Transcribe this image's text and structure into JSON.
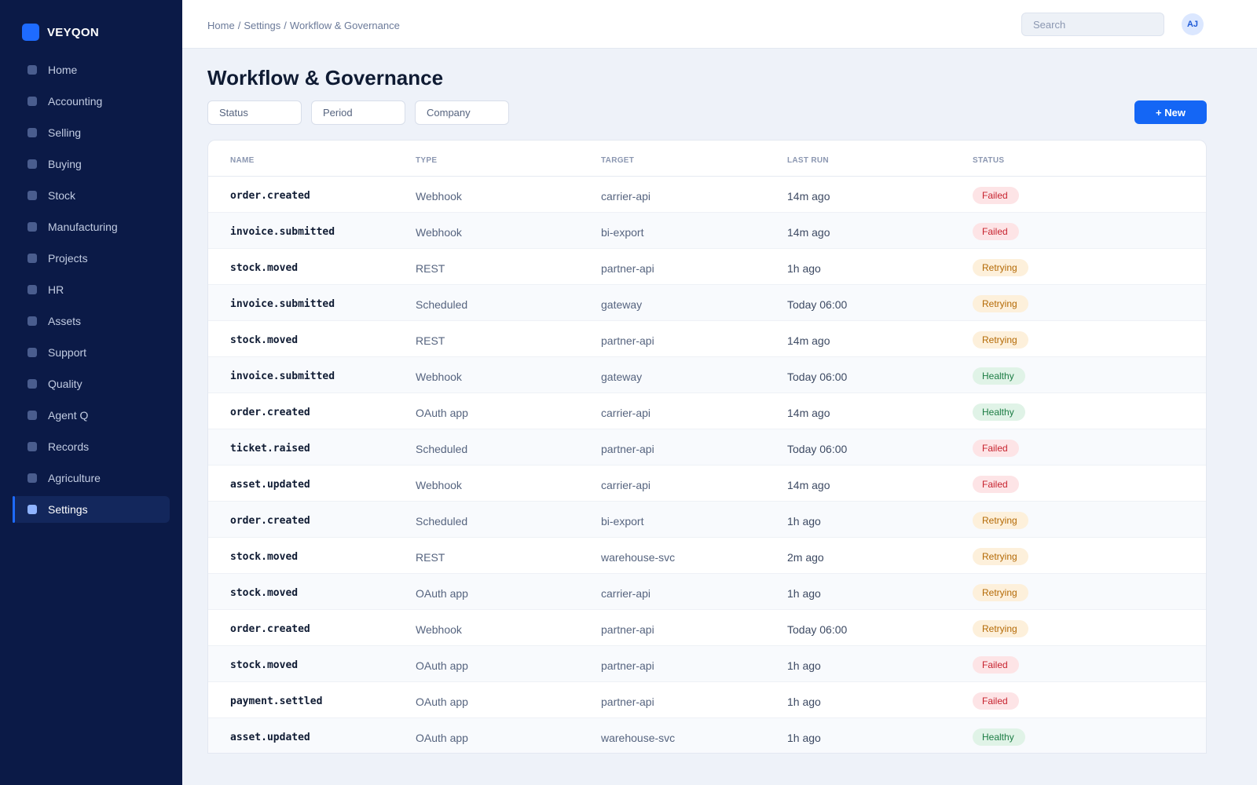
{
  "app": {
    "brand": "VEYQON"
  },
  "sidebar": {
    "items": [
      {
        "label": "Home",
        "active": false
      },
      {
        "label": "Accounting",
        "active": false
      },
      {
        "label": "Selling",
        "active": false
      },
      {
        "label": "Buying",
        "active": false
      },
      {
        "label": "Stock",
        "active": false
      },
      {
        "label": "Manufacturing",
        "active": false
      },
      {
        "label": "Projects",
        "active": false
      },
      {
        "label": "HR",
        "active": false
      },
      {
        "label": "Assets",
        "active": false
      },
      {
        "label": "Support",
        "active": false
      },
      {
        "label": "Quality",
        "active": false
      },
      {
        "label": "Agent Q",
        "active": false
      },
      {
        "label": "Records",
        "active": false
      },
      {
        "label": "Agriculture",
        "active": false
      },
      {
        "label": "Settings",
        "active": true
      }
    ]
  },
  "header": {
    "breadcrumb": [
      "Home",
      "Settings",
      "Workflow & Governance"
    ],
    "search_placeholder": "Search",
    "avatar_initials": "AJ"
  },
  "page": {
    "title": "Workflow & Governance",
    "filters": [
      "Status",
      "Period",
      "Company"
    ],
    "new_button": "+ New"
  },
  "table": {
    "columns": [
      "NAME",
      "TYPE",
      "TARGET",
      "LAST RUN",
      "STATUS"
    ],
    "rows": [
      {
        "name": "order.created",
        "type": "Webhook",
        "target": "carrier-api",
        "last_run": "14m ago",
        "status": "Failed"
      },
      {
        "name": "invoice.submitted",
        "type": "Webhook",
        "target": "bi-export",
        "last_run": "14m ago",
        "status": "Failed"
      },
      {
        "name": "stock.moved",
        "type": "REST",
        "target": "partner-api",
        "last_run": "1h ago",
        "status": "Retrying"
      },
      {
        "name": "invoice.submitted",
        "type": "Scheduled",
        "target": "gateway",
        "last_run": "Today 06:00",
        "status": "Retrying"
      },
      {
        "name": "stock.moved",
        "type": "REST",
        "target": "partner-api",
        "last_run": "14m ago",
        "status": "Retrying"
      },
      {
        "name": "invoice.submitted",
        "type": "Webhook",
        "target": "gateway",
        "last_run": "Today 06:00",
        "status": "Healthy"
      },
      {
        "name": "order.created",
        "type": "OAuth app",
        "target": "carrier-api",
        "last_run": "14m ago",
        "status": "Healthy"
      },
      {
        "name": "ticket.raised",
        "type": "Scheduled",
        "target": "partner-api",
        "last_run": "Today 06:00",
        "status": "Failed"
      },
      {
        "name": "asset.updated",
        "type": "Webhook",
        "target": "carrier-api",
        "last_run": "14m ago",
        "status": "Failed"
      },
      {
        "name": "order.created",
        "type": "Scheduled",
        "target": "bi-export",
        "last_run": "1h ago",
        "status": "Retrying"
      },
      {
        "name": "stock.moved",
        "type": "REST",
        "target": "warehouse-svc",
        "last_run": "2m ago",
        "status": "Retrying"
      },
      {
        "name": "stock.moved",
        "type": "OAuth app",
        "target": "carrier-api",
        "last_run": "1h ago",
        "status": "Retrying"
      },
      {
        "name": "order.created",
        "type": "Webhook",
        "target": "partner-api",
        "last_run": "Today 06:00",
        "status": "Retrying"
      },
      {
        "name": "stock.moved",
        "type": "OAuth app",
        "target": "partner-api",
        "last_run": "1h ago",
        "status": "Failed"
      },
      {
        "name": "payment.settled",
        "type": "OAuth app",
        "target": "partner-api",
        "last_run": "1h ago",
        "status": "Failed"
      },
      {
        "name": "asset.updated",
        "type": "OAuth app",
        "target": "warehouse-svc",
        "last_run": "1h ago",
        "status": "Healthy"
      }
    ]
  },
  "colors": {
    "sidebar_bg": "#0b1a47",
    "accent": "#1466f5",
    "failed": "#c7232f",
    "retrying": "#b46a06",
    "healthy": "#1c7d44"
  }
}
